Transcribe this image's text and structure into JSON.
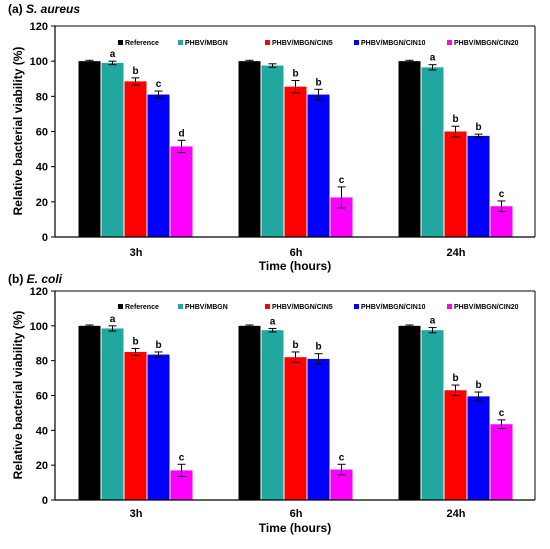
{
  "chart_data": [
    {
      "type": "bar",
      "title": "(a) ",
      "title_organism": "S. aureus",
      "xlabel": "Time (hours)",
      "ylabel": "Relative bacterial viability (%)",
      "ylim": [
        0,
        120
      ],
      "yticks": [
        0,
        20,
        40,
        60,
        80,
        100,
        120
      ],
      "categories": [
        "3h",
        "6h",
        "24h"
      ],
      "legend_position": "top-right",
      "series": [
        {
          "name": "Reference",
          "color": "#000000",
          "values": [
            100,
            100,
            100
          ],
          "errors": [
            0.5,
            0.5,
            0.5
          ],
          "labels": [
            "",
            "",
            ""
          ]
        },
        {
          "name": "PHBV/MBGN",
          "color": "#20a8a0",
          "values": [
            99,
            97.5,
            96.5
          ],
          "errors": [
            1,
            1,
            1.5
          ],
          "labels": [
            "a",
            "",
            "a"
          ]
        },
        {
          "name": "PHBV/MBGN/CIN5",
          "color": "#ff0000",
          "values": [
            88.5,
            85.5,
            60
          ],
          "errors": [
            2,
            3.5,
            3
          ],
          "labels": [
            "b",
            "b",
            "b"
          ]
        },
        {
          "name": "PHBV/MBGN/CIN10",
          "color": "#0000ff",
          "values": [
            81,
            81,
            57.5
          ],
          "errors": [
            2,
            3,
            1
          ],
          "labels": [
            "c",
            "b",
            "b"
          ]
        },
        {
          "name": "PHBV/MBGN/CIN20",
          "color": "#ff00ff",
          "values": [
            51.5,
            22.5,
            17.5
          ],
          "errors": [
            3.5,
            6,
            3
          ],
          "labels": [
            "d",
            "c",
            "c"
          ]
        }
      ]
    },
    {
      "type": "bar",
      "title": "(b) ",
      "title_organism": "E. coli",
      "xlabel": "Time (hours)",
      "ylabel": "Relative bacterial viability (%)",
      "ylim": [
        0,
        120
      ],
      "yticks": [
        0,
        20,
        40,
        60,
        80,
        100,
        120
      ],
      "categories": [
        "3h",
        "6h",
        "24h"
      ],
      "legend_position": "top-right",
      "series": [
        {
          "name": "Reference",
          "color": "#000000",
          "values": [
            100,
            100,
            100
          ],
          "errors": [
            0.5,
            0.5,
            0.5
          ],
          "labels": [
            "",
            "",
            ""
          ]
        },
        {
          "name": "PHBV/MBGN",
          "color": "#20a8a0",
          "values": [
            98.5,
            97.5,
            97.5
          ],
          "errors": [
            1.5,
            1,
            1.5
          ],
          "labels": [
            "a",
            "a",
            "a"
          ]
        },
        {
          "name": "PHBV/MBGN/CIN5",
          "color": "#ff0000",
          "values": [
            85,
            82,
            63
          ],
          "errors": [
            2,
            3,
            3
          ],
          "labels": [
            "b",
            "b",
            "b"
          ]
        },
        {
          "name": "PHBV/MBGN/CIN10",
          "color": "#0000ff",
          "values": [
            83.5,
            81,
            59.5
          ],
          "errors": [
            1.5,
            3,
            2.5
          ],
          "labels": [
            "b",
            "b",
            "b"
          ]
        },
        {
          "name": "PHBV/MBGN/CIN20",
          "color": "#ff00ff",
          "values": [
            17,
            17.5,
            43.5
          ],
          "errors": [
            3.5,
            3,
            2.5
          ],
          "labels": [
            "c",
            "c",
            "c"
          ]
        }
      ]
    }
  ]
}
